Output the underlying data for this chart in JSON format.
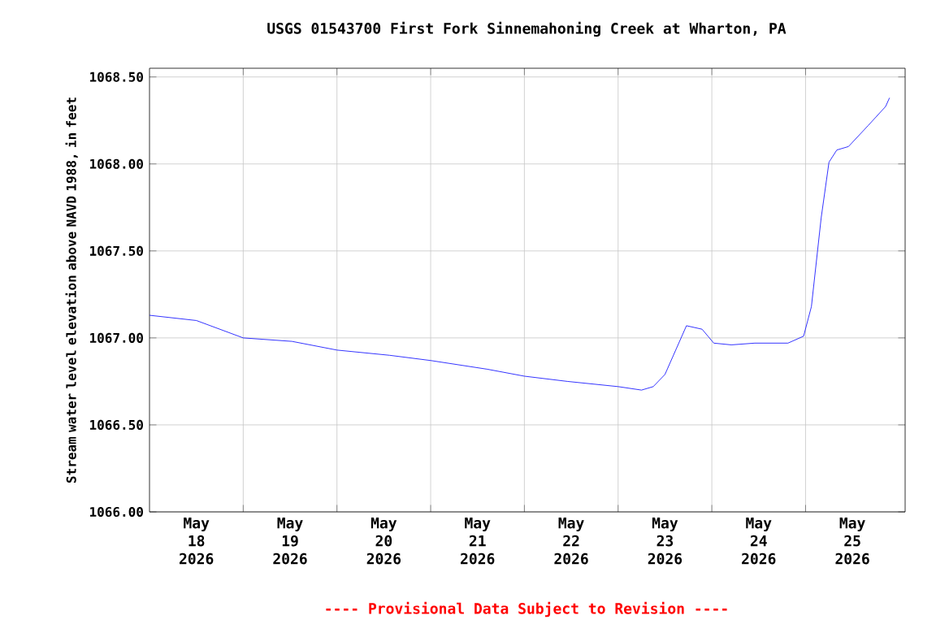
{
  "chart_data": {
    "type": "line",
    "title": "USGS 01543700 First Fork Sinnemahoning Creek at Wharton, PA",
    "ylabel": "Stream water level elevation above NAVD 1988, in feet",
    "annotations": [
      "---- Provisional Data Subject to Revision ----"
    ],
    "x": [
      "2026-05-18T00:00",
      "2026-05-18T12:00",
      "2026-05-19T00:00",
      "2026-05-19T12:30",
      "2026-05-20T00:00",
      "2026-05-20T13:30",
      "2026-05-21T00:00",
      "2026-05-21T14:30",
      "2026-05-22T00:00",
      "2026-05-22T11:00",
      "2026-05-23T00:00",
      "2026-05-23T06:00",
      "2026-05-23T09:00",
      "2026-05-23T12:00",
      "2026-05-23T17:30",
      "2026-05-23T21:30",
      "2026-05-24T00:30",
      "2026-05-24T05:00",
      "2026-05-24T11:00",
      "2026-05-24T19:30",
      "2026-05-24T23:30",
      "2026-05-25T01:30",
      "2026-05-25T04:00",
      "2026-05-25T06:00",
      "2026-05-25T08:00",
      "2026-05-25T11:00",
      "2026-05-25T16:00",
      "2026-05-25T20:30",
      "2026-05-25T21:30"
    ],
    "series": [
      {
        "color": "#0000ff",
        "values": [
          1067.13,
          1067.1,
          1067.0,
          1066.98,
          1066.93,
          1066.9,
          1066.87,
          1066.82,
          1066.78,
          1066.75,
          1066.72,
          1066.7,
          1066.72,
          1066.79,
          1067.07,
          1067.05,
          1066.97,
          1066.96,
          1066.97,
          1066.97,
          1067.01,
          1067.18,
          1067.69,
          1068.01,
          1068.08,
          1068.1,
          1068.22,
          1068.33,
          1068.38
        ]
      }
    ],
    "xlim": [
      "2026-05-18T00:00",
      "2026-05-26T01:30"
    ],
    "xticks": [
      {
        "value": "2026-05-18T12:00",
        "label": "May 18 2026"
      },
      {
        "value": "2026-05-19T00:00",
        "label": null
      },
      {
        "value": "2026-05-19T12:00",
        "label": "May 19 2026"
      },
      {
        "value": "2026-05-20T00:00",
        "label": null
      },
      {
        "value": "2026-05-20T12:00",
        "label": "May 20 2026"
      },
      {
        "value": "2026-05-21T00:00",
        "label": null
      },
      {
        "value": "2026-05-21T12:00",
        "label": "May 21 2026"
      },
      {
        "value": "2026-05-22T00:00",
        "label": null
      },
      {
        "value": "2026-05-22T12:00",
        "label": "May 22 2026"
      },
      {
        "value": "2026-05-23T00:00",
        "label": null
      },
      {
        "value": "2026-05-23T12:00",
        "label": "May 23 2026"
      },
      {
        "value": "2026-05-24T00:00",
        "label": null
      },
      {
        "value": "2026-05-24T12:00",
        "label": "May 24 2026"
      },
      {
        "value": "2026-05-25T00:00",
        "label": null
      },
      {
        "value": "2026-05-25T12:00",
        "label": "May 25 2026"
      }
    ],
    "ylim": [
      1066.0,
      1068.55
    ],
    "yticks": [
      {
        "value": 1066.0,
        "label": "1066.00"
      },
      {
        "value": 1066.5,
        "label": "1066.50"
      },
      {
        "value": 1067.0,
        "label": "1067.00"
      },
      {
        "value": 1067.5,
        "label": "1067.50"
      },
      {
        "value": 1068.0,
        "label": "1068.00"
      },
      {
        "value": 1068.5,
        "label": "1068.50"
      }
    ],
    "grid": true,
    "marker": "none",
    "line_style": "solid"
  }
}
